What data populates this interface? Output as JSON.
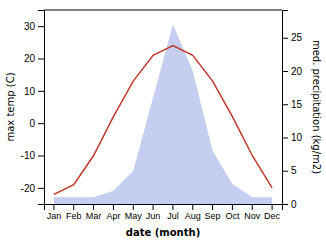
{
  "chart_data": {
    "type": "line",
    "xlabel": "date (month)",
    "ylabel": "max temp (C)",
    "y2label": "med. precipitation (kg/m2)",
    "categories": [
      "Jan",
      "Feb",
      "Mar",
      "Apr",
      "May",
      "Jun",
      "Jul",
      "Aug",
      "Sep",
      "Oct",
      "Nov",
      "Dec"
    ],
    "series": [
      {
        "type": "line",
        "color": "#c0392b",
        "values": [
          -22,
          -19,
          -10,
          2,
          13,
          21,
          24,
          21,
          13,
          2,
          -10,
          -20
        ]
      },
      {
        "type": "area",
        "axis": "y2",
        "color": "#c5cef0",
        "values": [
          1,
          1,
          1,
          2,
          5,
          16,
          27,
          20,
          8,
          3,
          1,
          1
        ]
      }
    ],
    "ylim": [
      -25,
      35
    ],
    "yticks": [
      -20,
      -10,
      0,
      10,
      20,
      30
    ],
    "y2lim": [
      0,
      29.17
    ],
    "y2ticks": [
      0,
      5,
      10,
      15,
      20,
      25
    ],
    "grid": false
  }
}
